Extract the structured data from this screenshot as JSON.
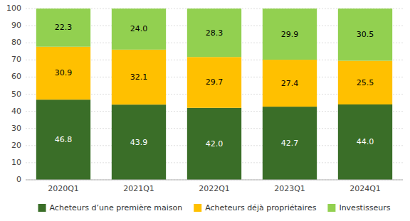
{
  "chart_data": {
    "type": "bar",
    "stacked": true,
    "categories": [
      "2020Q1",
      "2021Q1",
      "2022Q1",
      "2023Q1",
      "2024Q1"
    ],
    "series": [
      {
        "name": "Acheteurs d’une première maison",
        "color": "#3a6e28",
        "values": [
          46.8,
          43.9,
          42.0,
          42.7,
          44.0
        ],
        "value_labels": [
          "46.8",
          "43.9",
          "42.0",
          "42.7",
          "44.0"
        ]
      },
      {
        "name": "Acheteurs déjà propriétaires",
        "color": "#ffc000",
        "values": [
          30.9,
          32.1,
          29.7,
          27.4,
          25.5
        ],
        "value_labels": [
          "30.9",
          "32.1",
          "29.7",
          "27.4",
          "25.5"
        ]
      },
      {
        "name": "Investisseurs",
        "color": "#92d050",
        "values": [
          22.3,
          24.0,
          28.3,
          29.9,
          30.5
        ],
        "value_labels": [
          "22.3",
          "24.0",
          "28.3",
          "29.9",
          "30.5"
        ]
      }
    ],
    "ylim": [
      0,
      100
    ],
    "yticks": [
      0,
      10,
      20,
      30,
      40,
      50,
      60,
      70,
      80,
      90,
      100
    ],
    "grid": true,
    "legend": "bottom",
    "data_labels": true
  }
}
